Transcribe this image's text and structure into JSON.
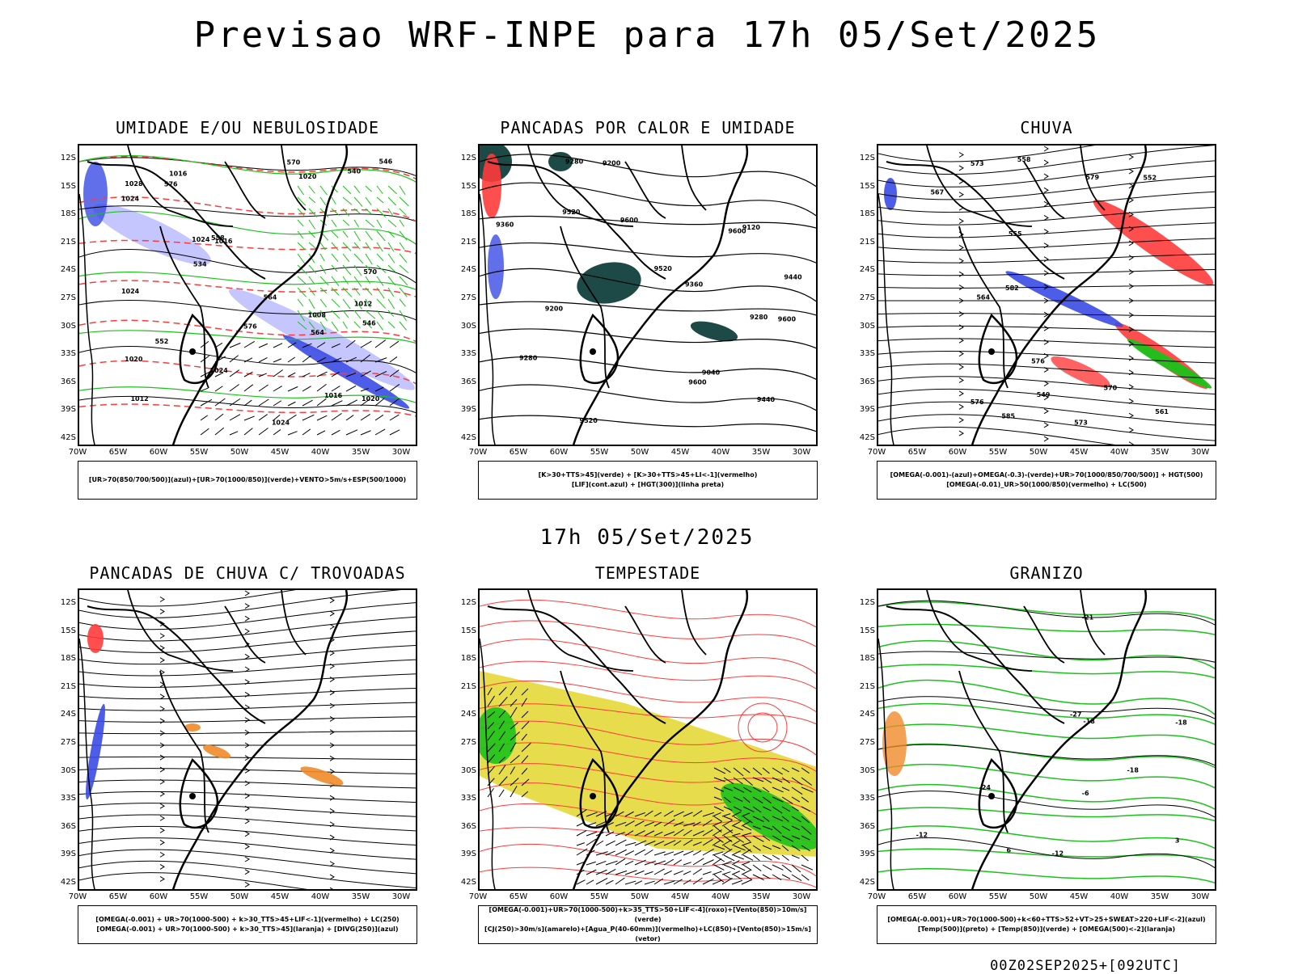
{
  "title": "Previsao WRF-INPE  para 17h 05/Set/2025",
  "mid_title": "17h 05/Set/2025",
  "footer": "00Z02SEP2025+[092UTC]",
  "axes": {
    "lat_labels": [
      "12S",
      "15S",
      "18S",
      "21S",
      "24S",
      "27S",
      "30S",
      "33S",
      "36S",
      "39S",
      "42S"
    ],
    "lon_labels": [
      "70W",
      "65W",
      "60W",
      "55W",
      "50W",
      "45W",
      "40W",
      "35W",
      "30W"
    ]
  },
  "panels": [
    {
      "id": "umidade",
      "title": "UMIDADE E/OU NEBULOSIDADE",
      "legend": [
        "[UR>70(850/700/500)](azul)+[UR>70(1000/850)](verde)+VENTO>5m/s+ESP(500/1000)"
      ],
      "labels": [
        "1008",
        "1012",
        "1012",
        "1016",
        "1016",
        "1016",
        "1020",
        "1020",
        "1024",
        "1024",
        "1024",
        "1024",
        "1028",
        "1020",
        "1024",
        "570",
        "576",
        "564",
        "558",
        "552",
        "546",
        "540",
        "534",
        "546",
        "570",
        "576",
        "564"
      ]
    },
    {
      "id": "pancadas-calor",
      "title": "PANCADAS POR CALOR E UMIDADE",
      "legend": [
        "[K>30+TTS>45](verde) + [K>30+TTS>45+LI<-1](vermelho)",
        "[LIF](cont.azul) + [HGT(300)](linha preta)"
      ],
      "labels": [
        "9600",
        "9600",
        "9600",
        "9600",
        "9520",
        "9520",
        "9520",
        "9440",
        "9440",
        "9360",
        "9360",
        "9280",
        "9280",
        "9280",
        "9200",
        "9200",
        "9120",
        "9040"
      ]
    },
    {
      "id": "chuva",
      "title": "CHUVA",
      "legend": [
        "[OMEGA(-0.001)-(azul)+OMEGA(-0.3)-(verde)+UR>70(1000/850/700/500)] + HGT(500)",
        "[OMEGA(-0.01)_UR>50(1000/850)(vermelho) + LC(500)"
      ],
      "labels": [
        "585",
        "573",
        "576",
        "570",
        "573",
        "567",
        "564",
        "561",
        "558",
        "555",
        "552",
        "549",
        "582",
        "576",
        "579"
      ]
    },
    {
      "id": "trovoadas",
      "title": "PANCADAS DE CHUVA C/ TROVOADAS",
      "legend": [
        "[OMEGA(-0.001) + UR>70(1000-500) + k>30_TTS>45+LIF<-1](vermelho) + LC(250)",
        "[OMEGA(-0.001) + UR>70(1000-500) + k>30_TTS>45](laranja) + [DIVG(250)](azul)"
      ],
      "labels": []
    },
    {
      "id": "tempestade",
      "title": "TEMPESTADE",
      "legend": [
        "[OMEGA(-0.001)+UR>70(1000-500)+k>35_TTS>50+LIF<-4](roxo)+[Vento(850)>10m/s](verde)",
        "[CJ(250)>30m/s](amarelo)+[Agua_P(40-60mm)](vermelho)+LC(850)+[Vento(850)>15m/s](vetor)"
      ],
      "labels": []
    },
    {
      "id": "granizo",
      "title": "GRANIZO",
      "legend": [
        "[OMEGA(-0.001)+UR>70(1000-500)+k<60+TTS>52+VT>25+SWEAT>220+LIF<-2](azul)",
        "[Temp(500)](preto) + [Temp(850)](verde) + [OMEGA(500)<-2](laranja)"
      ],
      "labels": [
        "-6",
        "-12",
        "-12",
        "-18",
        "-18",
        "-18",
        "-21",
        "-24",
        "-27",
        "3",
        "6"
      ]
    }
  ],
  "colors": {
    "red": "#ff3b3b",
    "green": "#19c219",
    "blue": "#3a4be6",
    "lightblue": "#b8b8ff",
    "darkteal": "#1d4a46",
    "yellow": "#e3d62c",
    "orange": "#f08a2a",
    "black": "#000000"
  }
}
